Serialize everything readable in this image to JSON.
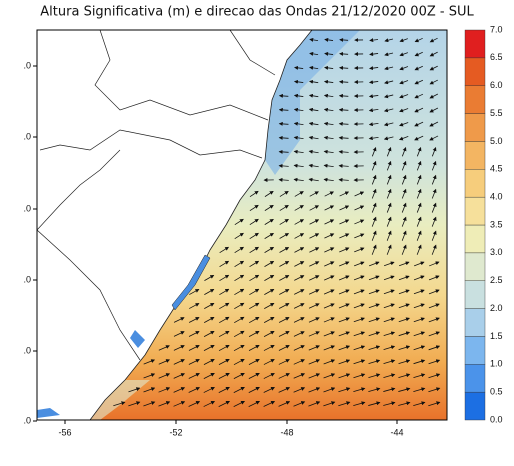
{
  "title": "Altura Significativa (m) e direcao das Ondas 21/12/2020 00Z - SUL",
  "map": {
    "x_ticks": [
      "-56",
      "-52",
      "-48",
      "-44"
    ],
    "y_ticks": [
      ".0",
      ".0",
      ".0",
      ".0",
      ".0",
      ".0"
    ]
  },
  "colorbar": {
    "labels": [
      "0.0",
      "0.5",
      "1.0",
      "1.5",
      "2.0",
      "2.5",
      "3.0",
      "3.5",
      "4.0",
      "4.5",
      "5.0",
      "5.5",
      "6.0",
      "6.5",
      "7.0"
    ],
    "colors": [
      "#1c6fe3",
      "#4b93ea",
      "#7cb6ee",
      "#a9cfea",
      "#c9e0e0",
      "#dfe9cf",
      "#efedb7",
      "#f6e09b",
      "#f6cd7c",
      "#f3b562",
      "#ef9a4a",
      "#ea7c33",
      "#e55b22",
      "#e01f1f"
    ]
  }
}
